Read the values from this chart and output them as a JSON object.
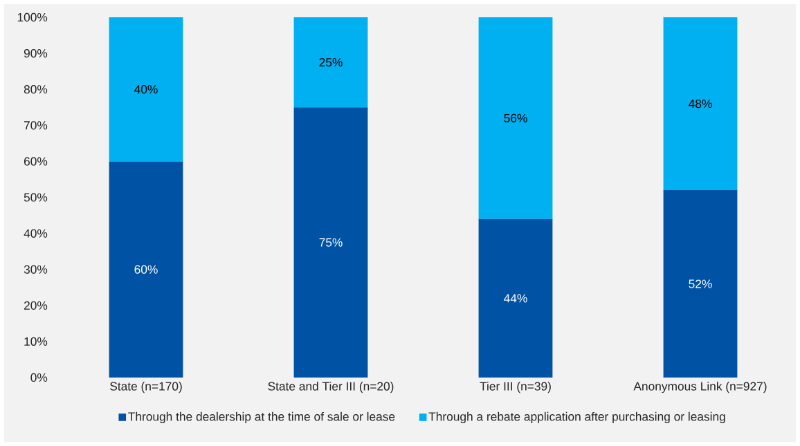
{
  "chart_data": {
    "type": "bar",
    "stacked": true,
    "categories": [
      "State (n=170)",
      "State and Tier III (n=20)",
      "Tier III (n=39)",
      "Anonymous Link (n=927)"
    ],
    "series": [
      {
        "name": "Through the dealership at the time of sale or lease",
        "color": "#0052a5",
        "values": [
          60,
          75,
          44,
          52
        ],
        "value_labels": [
          "60%",
          "75%",
          "44%",
          "52%"
        ]
      },
      {
        "name": "Through a rebate application after purchasing or leasing",
        "color": "#00b0f0",
        "values": [
          40,
          25,
          56,
          48
        ],
        "value_labels": [
          "40%",
          "25%",
          "56%",
          "48%"
        ]
      }
    ],
    "ylim": [
      0,
      100
    ],
    "yticks": [
      {
        "value": 0,
        "label": "0%"
      },
      {
        "value": 10,
        "label": "10%"
      },
      {
        "value": 20,
        "label": "20%"
      },
      {
        "value": 30,
        "label": "30%"
      },
      {
        "value": 40,
        "label": "40%"
      },
      {
        "value": 50,
        "label": "50%"
      },
      {
        "value": 60,
        "label": "60%"
      },
      {
        "value": 70,
        "label": "70%"
      },
      {
        "value": 80,
        "label": "80%"
      },
      {
        "value": 90,
        "label": "90%"
      },
      {
        "value": 100,
        "label": "100%"
      }
    ],
    "grid": false,
    "legend": "bottom"
  }
}
